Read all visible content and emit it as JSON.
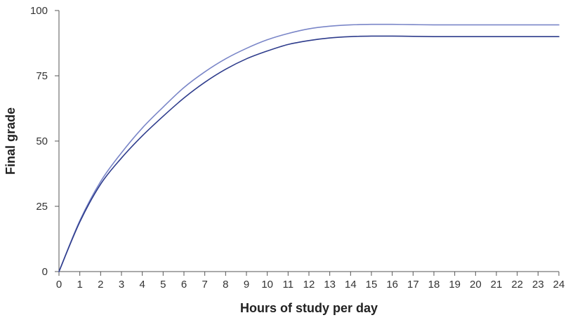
{
  "chart_data": {
    "type": "line",
    "xlabel": "Hours of study per day",
    "ylabel": "Final grade",
    "xlim": [
      0,
      24
    ],
    "ylim": [
      0,
      100
    ],
    "x_ticks": [
      0,
      1,
      2,
      3,
      4,
      5,
      6,
      7,
      8,
      9,
      10,
      11,
      12,
      13,
      14,
      15,
      16,
      17,
      18,
      19,
      20,
      21,
      22,
      23,
      24
    ],
    "y_ticks": [
      0,
      25,
      50,
      75,
      100
    ],
    "grid": false,
    "legend": "none",
    "x": [
      0,
      1,
      2,
      3,
      4,
      5,
      6,
      7,
      8,
      9,
      10,
      11,
      12,
      13,
      14,
      15,
      16,
      17,
      18,
      19,
      20,
      21,
      22,
      23,
      24
    ],
    "series": [
      {
        "color": "#7a86c8",
        "values": [
          0,
          19.5,
          34.5,
          45.5,
          55,
          63,
          70.5,
          76.5,
          81.5,
          85.5,
          88.8,
          91.2,
          93,
          94,
          94.5,
          94.7,
          94.7,
          94.6,
          94.5,
          94.5,
          94.5,
          94.5,
          94.5,
          94.5,
          94.5
        ]
      },
      {
        "color": "#2e3c8c",
        "values": [
          0,
          19,
          33.5,
          43.5,
          52,
          59.5,
          66.5,
          72.5,
          77.5,
          81.5,
          84.5,
          87,
          88.5,
          89.5,
          90,
          90.2,
          90.2,
          90.1,
          90,
          90,
          90,
          90,
          90,
          90,
          90
        ]
      }
    ]
  },
  "colors": {
    "axis": "#555555",
    "text": "#333333"
  }
}
